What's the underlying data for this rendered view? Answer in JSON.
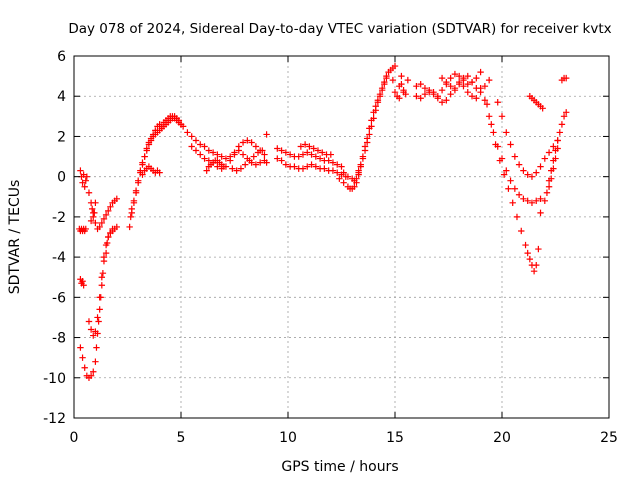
{
  "chart_data": {
    "type": "scatter",
    "title": "Day 078 of 2024, Sidereal Day-to-day VTEC variation (SDTVAR) for receiver kvtx",
    "xlabel": "GPS time / hours",
    "ylabel": "SDTVAR / TECUs",
    "xlim": [
      0,
      25
    ],
    "ylim": [
      -12,
      6
    ],
    "xticks": [
      0,
      5,
      10,
      15,
      20,
      25
    ],
    "yticks": [
      -12,
      -10,
      -8,
      -6,
      -4,
      -2,
      0,
      2,
      4,
      6
    ],
    "xtick_labels": [
      "0",
      "5",
      "10",
      "15",
      "20",
      "25"
    ],
    "ytick_labels": [
      "-12",
      "-10",
      "-8",
      "-6",
      "-4",
      "-2",
      "0",
      "2",
      "4",
      "6"
    ],
    "grid": true,
    "marker": "plus",
    "color": "#ff0000",
    "series": [
      {
        "name": "arc-early-deep",
        "x": [
          0.3,
          0.4,
          0.5,
          0.6,
          0.7,
          0.8,
          0.9,
          1.0,
          1.05,
          1.1,
          1.15,
          1.2,
          1.25,
          1.3,
          1.35,
          1.4,
          1.5,
          1.55,
          1.6,
          1.7,
          1.8,
          1.9,
          2.0
        ],
        "y": [
          -8.5,
          -9.0,
          -9.5,
          -9.9,
          -10.0,
          -9.9,
          -9.7,
          -9.2,
          -8.5,
          -7.8,
          -7.2,
          -6.6,
          -6.0,
          -5.4,
          -4.8,
          -4.2,
          -3.8,
          -3.3,
          -3.0,
          -2.8,
          -2.7,
          -2.6,
          -2.5
        ]
      },
      {
        "name": "arc-early-mid",
        "x": [
          0.7,
          0.8,
          0.9,
          1.0,
          1.1,
          1.2,
          1.3,
          1.4,
          1.5,
          1.6,
          1.7,
          1.8
        ],
        "y": [
          -7.2,
          -7.6,
          -7.9,
          -7.7,
          -7.0,
          -6.0,
          -5.0,
          -4.0,
          -3.4,
          -3.0,
          -2.8,
          -2.6
        ]
      },
      {
        "name": "arc-early-shallow",
        "x": [
          0.3,
          0.35,
          0.4,
          0.45,
          0.5,
          0.55,
          0.6,
          0.7,
          0.8,
          0.9,
          1.0,
          1.1,
          1.2,
          1.3,
          1.4,
          1.5,
          1.6,
          1.7,
          1.8,
          1.9,
          2.0
        ],
        "y": [
          0.3,
          0.0,
          -0.3,
          0.1,
          -0.5,
          -0.2,
          0.0,
          -0.8,
          -1.3,
          -1.8,
          -2.3,
          -2.6,
          -2.5,
          -2.3,
          -2.1,
          -1.9,
          -1.7,
          -1.5,
          -1.3,
          -1.2,
          -1.1
        ]
      },
      {
        "name": "arc-early-isolated",
        "x": [
          0.25,
          0.3,
          0.35,
          0.4,
          0.45,
          0.5,
          0.55,
          0.3,
          0.35,
          0.4,
          0.45,
          0.8,
          0.85,
          0.9,
          0.95,
          1.0
        ],
        "y": [
          -2.6,
          -2.7,
          -2.6,
          -2.7,
          -2.6,
          -2.7,
          -2.6,
          -5.1,
          -5.3,
          -5.2,
          -5.4,
          -2.2,
          -1.6,
          -2.0,
          -1.8,
          -1.3
        ]
      },
      {
        "name": "arc-rise",
        "x": [
          2.6,
          2.65,
          2.7,
          2.8,
          2.9,
          3.0,
          3.1,
          3.2,
          3.3,
          3.4,
          3.5,
          3.6,
          3.7,
          3.8,
          3.9,
          4.0,
          4.1,
          4.2,
          4.3,
          4.4,
          4.5,
          4.6,
          4.7,
          4.8,
          4.9,
          5.0,
          5.1
        ],
        "y": [
          -2.5,
          -2.0,
          -1.6,
          -1.2,
          -0.7,
          -0.2,
          0.3,
          0.7,
          1.0,
          1.4,
          1.7,
          1.9,
          2.1,
          2.3,
          2.5,
          2.6,
          2.5,
          2.7,
          2.8,
          2.9,
          3.0,
          3.0,
          2.9,
          2.8,
          2.7,
          2.6,
          2.5
        ]
      },
      {
        "name": "arc-rise-2",
        "x": [
          2.7,
          2.8,
          2.9,
          3.0,
          3.1,
          3.2,
          3.3,
          3.4,
          3.5,
          3.6,
          3.7,
          3.8,
          3.9,
          4.0,
          4.1,
          4.2,
          4.3,
          4.4,
          4.5,
          4.6,
          4.7,
          4.8,
          4.9,
          5.0
        ],
        "y": [
          -1.8,
          -1.3,
          -0.8,
          -0.3,
          0.2,
          0.6,
          1.0,
          1.3,
          1.6,
          1.8,
          2.0,
          2.1,
          2.2,
          2.3,
          2.4,
          2.5,
          2.6,
          2.7,
          2.8,
          2.9,
          3.0,
          2.9,
          2.8,
          2.6
        ]
      },
      {
        "name": "arc-bump",
        "x": [
          3.2,
          3.3,
          3.4,
          3.5,
          3.6,
          3.7,
          3.8,
          3.9,
          4.0
        ],
        "y": [
          0.1,
          0.3,
          0.4,
          0.5,
          0.4,
          0.3,
          0.2,
          0.3,
          0.2
        ]
      },
      {
        "name": "arc-plateau-a",
        "x": [
          5.3,
          5.5,
          5.7,
          5.9,
          6.1,
          6.3,
          6.5,
          6.7,
          6.9,
          7.1,
          7.3,
          7.5,
          7.7,
          7.9,
          8.1,
          8.3,
          8.5,
          8.7,
          8.9
        ],
        "y": [
          2.2,
          2.0,
          1.8,
          1.6,
          1.5,
          1.3,
          1.2,
          1.1,
          1.0,
          0.9,
          1.0,
          1.2,
          1.5,
          1.7,
          1.8,
          1.7,
          1.5,
          1.3,
          1.1
        ]
      },
      {
        "name": "arc-plateau-b",
        "x": [
          5.5,
          5.7,
          5.9,
          6.1,
          6.3,
          6.5,
          6.7,
          6.9,
          7.1,
          7.3,
          7.5,
          7.7,
          7.9,
          8.1,
          8.3,
          8.5,
          8.7,
          8.9,
          9.0
        ],
        "y": [
          1.5,
          1.3,
          1.1,
          0.9,
          0.8,
          0.7,
          0.5,
          0.4,
          0.5,
          0.8,
          1.1,
          1.3,
          1.1,
          0.9,
          0.7,
          0.6,
          0.7,
          0.8,
          0.7
        ]
      },
      {
        "name": "arc-plateau-c",
        "x": [
          6.2,
          6.3,
          6.4,
          6.5,
          6.6,
          6.7,
          6.8,
          6.9,
          7.0,
          7.4,
          7.6,
          7.8,
          8.0,
          8.2,
          8.4,
          8.6,
          8.8,
          9.0
        ],
        "y": [
          0.3,
          0.5,
          0.6,
          0.7,
          0.8,
          0.8,
          0.7,
          0.6,
          0.5,
          0.4,
          0.3,
          0.4,
          0.6,
          0.8,
          1.0,
          1.2,
          1.3,
          2.1
        ]
      },
      {
        "name": "arc-middle-a",
        "x": [
          9.5,
          9.7,
          9.9,
          10.1,
          10.3,
          10.5,
          10.7,
          10.9,
          11.1,
          11.3,
          11.5,
          11.7,
          11.9,
          12.1,
          12.3,
          12.5
        ],
        "y": [
          1.4,
          1.3,
          1.2,
          1.1,
          1.0,
          1.0,
          1.1,
          1.2,
          1.1,
          1.0,
          0.9,
          0.8,
          0.8,
          0.7,
          0.6,
          0.5
        ]
      },
      {
        "name": "arc-middle-b",
        "x": [
          9.5,
          9.7,
          9.9,
          10.1,
          10.3,
          10.5,
          10.7,
          10.9,
          11.1,
          11.3,
          11.5,
          11.7,
          11.9,
          12.1,
          12.3,
          12.5,
          12.7
        ],
        "y": [
          0.9,
          0.8,
          0.6,
          0.5,
          0.5,
          0.4,
          0.4,
          0.5,
          0.6,
          0.5,
          0.4,
          0.4,
          0.3,
          0.3,
          0.2,
          0.1,
          0.0
        ]
      },
      {
        "name": "arc-middle-c",
        "x": [
          10.6,
          10.8,
          11.0,
          11.2,
          11.4,
          11.6,
          11.8,
          12.0
        ],
        "y": [
          1.5,
          1.6,
          1.5,
          1.4,
          1.3,
          1.2,
          1.1,
          1.1
        ]
      },
      {
        "name": "arc-dip",
        "x": [
          12.4,
          12.6,
          12.8,
          12.9,
          13.0,
          13.1,
          13.2,
          13.3,
          13.4
        ],
        "y": [
          -0.1,
          -0.3,
          -0.5,
          -0.6,
          -0.6,
          -0.5,
          -0.3,
          0.1,
          0.5
        ]
      },
      {
        "name": "arc-dip-2",
        "x": [
          12.6,
          12.8,
          13.0,
          13.1,
          13.2,
          13.3
        ],
        "y": [
          0.2,
          0.0,
          -0.1,
          -0.2,
          -0.1,
          0.2
        ]
      },
      {
        "name": "arc-steep-rise",
        "x": [
          13.3,
          13.4,
          13.5,
          13.6,
          13.7,
          13.8,
          13.9,
          14.0,
          14.1,
          14.2,
          14.3,
          14.4,
          14.5,
          14.6,
          14.7,
          14.8,
          14.9,
          15.0
        ],
        "y": [
          0.3,
          0.6,
          0.9,
          1.3,
          1.7,
          2.1,
          2.5,
          2.9,
          3.3,
          3.7,
          4.1,
          4.4,
          4.7,
          5.0,
          5.2,
          5.3,
          5.4,
          5.5
        ]
      },
      {
        "name": "arc-steep-rise-2",
        "x": [
          13.5,
          13.6,
          13.7,
          13.8,
          13.9,
          14.0,
          14.1,
          14.2,
          14.3,
          14.4,
          14.5,
          14.6
        ],
        "y": [
          1.0,
          1.5,
          1.9,
          2.4,
          2.8,
          3.2,
          3.5,
          3.8,
          4.0,
          4.3,
          4.6,
          4.9
        ]
      },
      {
        "name": "arc-scatter-15",
        "x": [
          14.9,
          15.0,
          15.1,
          15.2,
          15.3,
          15.4,
          15.5,
          15.6,
          15.2,
          15.3,
          15.4
        ],
        "y": [
          4.8,
          4.2,
          4.0,
          4.5,
          5.0,
          4.3,
          4.1,
          4.8,
          3.9,
          4.6,
          4.2
        ]
      },
      {
        "name": "arc-high-a",
        "x": [
          16.0,
          16.2,
          16.4,
          16.6,
          16.8,
          17.0,
          17.2,
          17.4,
          17.6,
          17.8,
          18.0,
          18.2,
          18.4,
          18.6,
          18.8,
          19.0
        ],
        "y": [
          4.5,
          4.6,
          4.4,
          4.3,
          4.2,
          4.0,
          4.3,
          4.6,
          4.9,
          5.1,
          5.0,
          4.8,
          4.6,
          4.7,
          4.9,
          5.2
        ]
      },
      {
        "name": "arc-high-b",
        "x": [
          16.0,
          16.2,
          16.4,
          16.6,
          16.8,
          17.0,
          17.2,
          17.4,
          17.6,
          17.8,
          18.0,
          18.2,
          18.4,
          18.6,
          18.8
        ],
        "y": [
          4.0,
          3.9,
          4.1,
          4.2,
          4.1,
          3.9,
          3.7,
          3.8,
          4.1,
          4.4,
          4.7,
          4.5,
          4.2,
          4.0,
          3.9
        ]
      },
      {
        "name": "arc-high-c",
        "x": [
          17.2,
          17.4,
          17.6,
          17.8,
          18.0,
          18.2,
          18.4,
          18.6,
          18.8,
          19.0,
          19.2,
          19.4
        ],
        "y": [
          4.9,
          4.7,
          4.5,
          4.3,
          4.6,
          4.9,
          5.0,
          4.7,
          4.4,
          4.2,
          4.5,
          4.8
        ]
      },
      {
        "name": "arc-fall-a",
        "x": [
          19.0,
          19.2,
          19.4,
          19.6,
          19.8,
          20.0,
          20.2,
          20.4,
          20.6,
          20.8,
          21.0,
          21.2,
          21.4,
          21.6,
          21.8
        ],
        "y": [
          4.4,
          3.8,
          3.0,
          2.2,
          1.5,
          0.9,
          0.3,
          -0.2,
          -0.6,
          -0.9,
          -1.1,
          -1.2,
          -1.3,
          -1.2,
          -1.1
        ]
      },
      {
        "name": "arc-fall-b",
        "x": [
          19.3,
          19.5,
          19.7,
          19.9,
          20.1,
          20.3,
          20.5,
          20.7,
          20.9,
          21.1,
          21.2,
          21.3,
          21.4,
          21.5,
          21.6,
          21.7
        ],
        "y": [
          3.6,
          2.6,
          1.6,
          0.8,
          0.1,
          -0.6,
          -1.3,
          -2.0,
          -2.7,
          -3.4,
          -3.8,
          -4.1,
          -4.4,
          -4.7,
          -4.4,
          -3.6
        ]
      },
      {
        "name": "arc-fall-c",
        "x": [
          19.8,
          20.0,
          20.2,
          20.4,
          20.6,
          20.8,
          21.0,
          21.2,
          21.4,
          21.6,
          21.8,
          22.0,
          22.2,
          22.4,
          22.6
        ],
        "y": [
          3.7,
          3.0,
          2.2,
          1.6,
          1.0,
          0.6,
          0.3,
          0.1,
          0.0,
          0.2,
          0.5,
          0.9,
          1.2,
          1.5,
          1.8
        ]
      },
      {
        "name": "arc-fall-d",
        "x": [
          21.8,
          22.0,
          22.1,
          22.2,
          22.3,
          22.4,
          22.5,
          22.6,
          22.7,
          22.8,
          22.9,
          23.0
        ],
        "y": [
          -1.8,
          -1.2,
          -0.8,
          -0.2,
          0.3,
          0.8,
          1.3,
          1.8,
          2.2,
          2.6,
          3.0,
          3.2
        ]
      },
      {
        "name": "arc-late",
        "x": [
          21.3,
          21.4,
          21.5,
          21.6,
          21.7,
          21.8,
          21.9,
          22.2,
          22.3,
          22.4,
          22.5,
          22.6,
          22.8,
          22.9,
          23.0
        ],
        "y": [
          4.0,
          3.9,
          3.8,
          3.7,
          3.6,
          3.5,
          3.4,
          -0.5,
          -0.1,
          0.4,
          0.9,
          1.4,
          4.8,
          4.9,
          4.9
        ]
      }
    ]
  }
}
